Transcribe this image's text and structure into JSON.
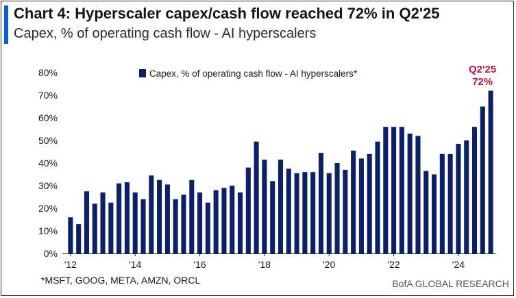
{
  "header": {
    "title": "Chart 4: Hyperscaler capex/cash flow reached 72% in Q2'25",
    "subtitle": "Capex, % of operating cash flow - AI hyperscalers"
  },
  "footer": {
    "footnote": "*MSFT, GOOG, META, AMZN, ORCL",
    "source": "BofA GLOBAL RESEARCH"
  },
  "colors": {
    "bar": "#0b1f6b",
    "accent": "#0e5bd8",
    "callout": "#c0143c"
  },
  "chart_data": {
    "type": "bar",
    "title": "Chart 4: Hyperscaler capex/cash flow reached 72% in Q2'25",
    "subtitle": "Capex, % of operating cash flow - AI hyperscalers",
    "legend": {
      "label": "Capex, % of operating cash flow - AI hyperscalers*",
      "placement": "top-center"
    },
    "ylim": [
      0,
      80
    ],
    "yticks": [
      0,
      10,
      20,
      30,
      40,
      50,
      60,
      70,
      80
    ],
    "ytick_format": "{v}%",
    "xtick_labels": [
      "'12",
      "'14",
      "'16",
      "'18",
      "'20",
      "'22",
      "'24"
    ],
    "xtick_index": [
      0,
      8,
      16,
      24,
      32,
      40,
      48
    ],
    "grid": false,
    "series": [
      {
        "name": "Capex, % of operating cash flow - AI hyperscalers*",
        "values": [
          16,
          13,
          27.5,
          22,
          27,
          22.5,
          31,
          31.5,
          27,
          24,
          34.5,
          32.5,
          30.5,
          24,
          26,
          32.5,
          27,
          22.5,
          28,
          29,
          30,
          27,
          38,
          49.5,
          41.5,
          32,
          41.5,
          37.5,
          35.5,
          36,
          36,
          44.5,
          35.5,
          40,
          37,
          45.5,
          42,
          44,
          49.5,
          56,
          56,
          56,
          53,
          52,
          36.5,
          35,
          44,
          44,
          48.5,
          50,
          56,
          65,
          72
        ]
      }
    ],
    "annotations": [
      {
        "label": "Q2'25",
        "value_label": "72%"
      }
    ]
  }
}
